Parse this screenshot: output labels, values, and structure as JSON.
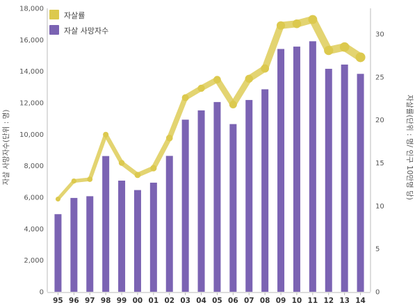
{
  "chart_data": {
    "type": "bar",
    "categories": [
      "95",
      "96",
      "97",
      "98",
      "99",
      "00",
      "01",
      "02",
      "03",
      "04",
      "05",
      "06",
      "07",
      "08",
      "09",
      "10",
      "11",
      "12",
      "13",
      "14"
    ],
    "series": [
      {
        "name": "자살 사망자수",
        "type": "bar",
        "axis": "left",
        "color": "#7b63b3",
        "values": [
          4930,
          5960,
          6070,
          8620,
          7060,
          6460,
          6930,
          8630,
          10930,
          11520,
          12050,
          10650,
          12180,
          12860,
          15420,
          15570,
          15910,
          14160,
          14430,
          13840
        ]
      },
      {
        "name": "자살률",
        "type": "line",
        "axis": "right",
        "color": "#dcc94e",
        "values": [
          10.8,
          12.9,
          13.1,
          18.3,
          15.0,
          13.6,
          14.4,
          17.9,
          22.6,
          23.7,
          24.7,
          21.8,
          24.8,
          26.0,
          31.0,
          31.2,
          31.7,
          28.1,
          28.5,
          27.3
        ]
      }
    ],
    "ylabel": "자살 사망자수(단위 : 명)",
    "y2label": "자살률(단위 : 명/ 인구 10만명 당)",
    "ylim": [
      0,
      18000
    ],
    "y_ticks": [
      0,
      2000,
      4000,
      6000,
      8000,
      10000,
      12000,
      14000,
      16000,
      18000
    ],
    "y2lim": [
      0,
      33
    ],
    "y2_ticks": [
      0,
      5,
      10,
      15,
      20,
      25,
      30
    ],
    "legend_position": "top-left",
    "grid": false
  }
}
